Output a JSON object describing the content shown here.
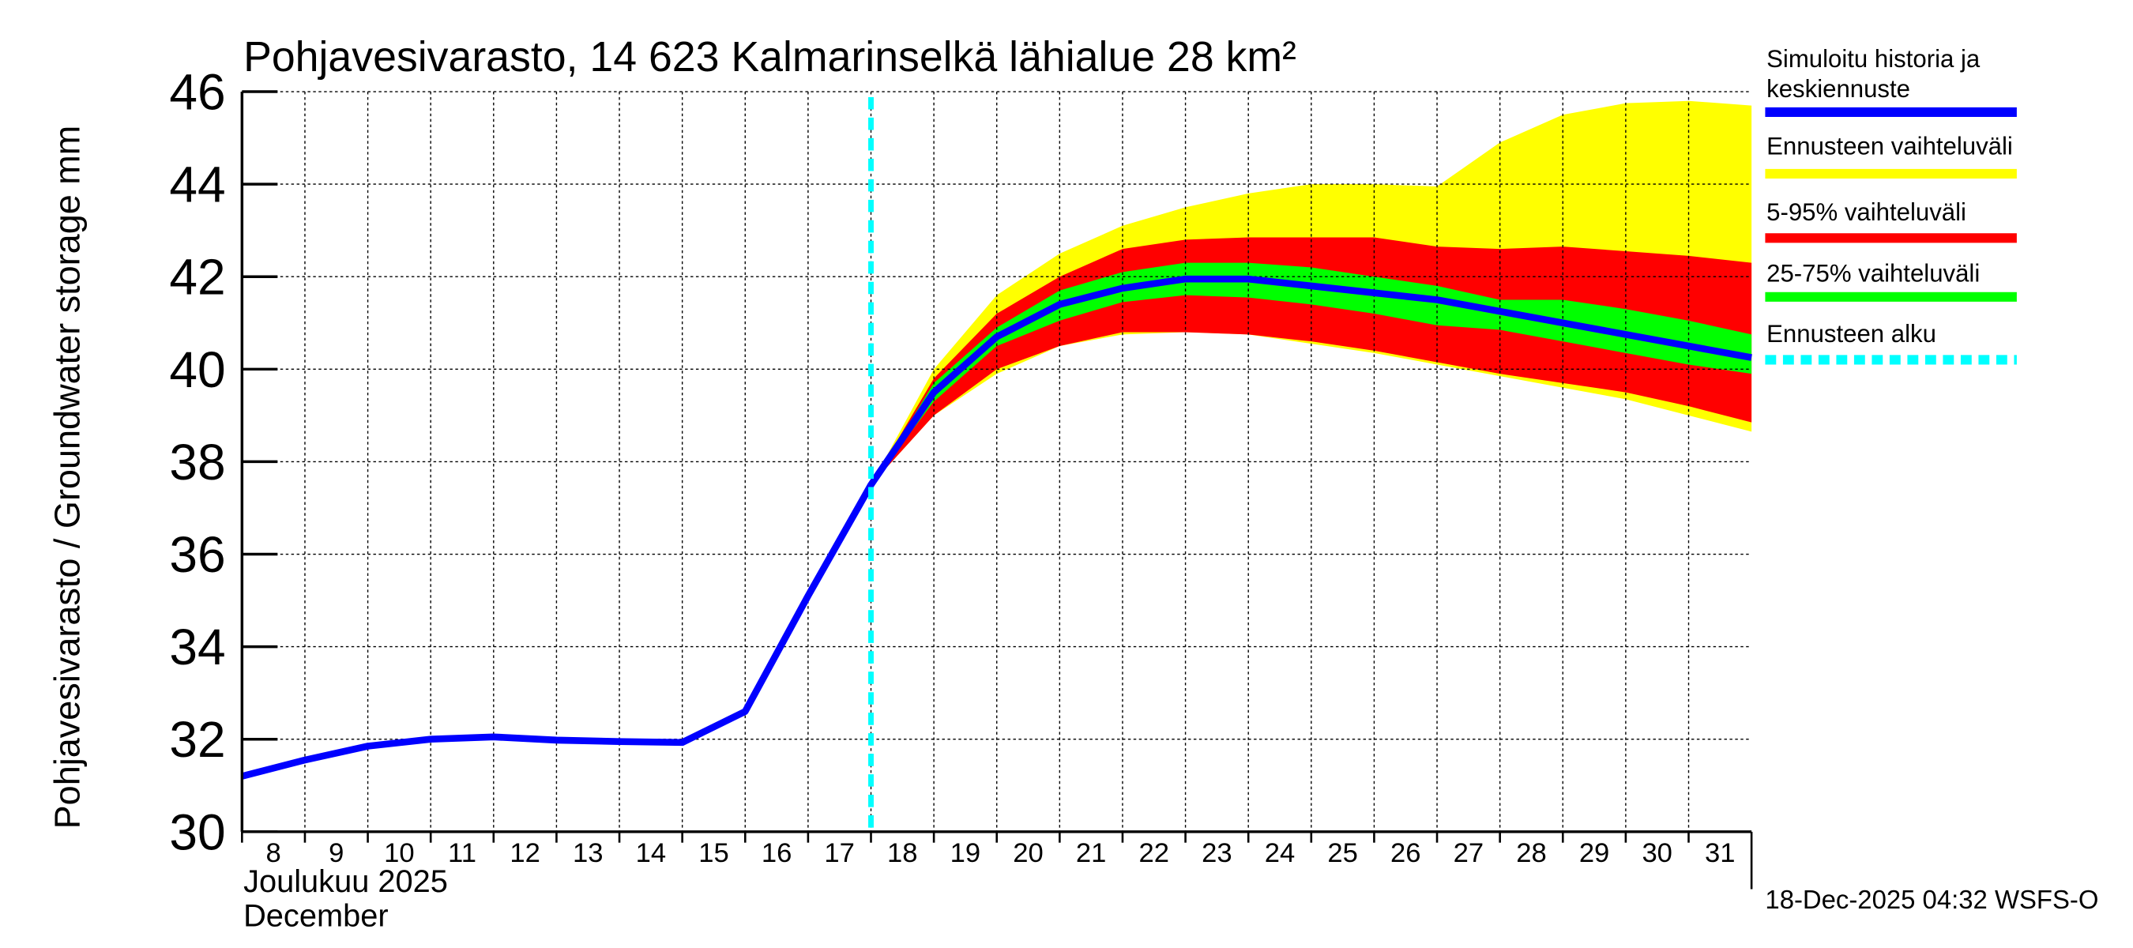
{
  "chart_data": {
    "type": "area",
    "title": "Pohjavesivarasto, 14 623 Kalmarinselkä lähialue 28 km²",
    "ylabel": "Pohjavesivarasto / Groundwater storage   mm",
    "xlabel_line1": "Joulukuu  2025",
    "xlabel_line2": "December",
    "footer": "18-Dec-2025 04:32 WSFS-O",
    "ylim": [
      30,
      46
    ],
    "yticks": [
      "30",
      "32",
      "34",
      "36",
      "38",
      "40",
      "42",
      "44",
      "46"
    ],
    "xlim": [
      8,
      32
    ],
    "xticks": [
      "8",
      "9",
      "10",
      "11",
      "12",
      "13",
      "14",
      "15",
      "16",
      "17",
      "18",
      "19",
      "20",
      "21",
      "22",
      "23",
      "24",
      "25",
      "26",
      "27",
      "28",
      "29",
      "30",
      "31"
    ],
    "forecast_start_day": 18,
    "grid": true,
    "legend_placement": "right",
    "legend": [
      {
        "label": "Simuloitu historia ja keskiennuste",
        "line1": "Simuloitu historia ja",
        "line2": "keskiennuste",
        "color": "#0000ff",
        "style": "solid"
      },
      {
        "label": "Ennusteen vaihteluväli",
        "color": "#ffff00",
        "style": "solid"
      },
      {
        "label": "5-95% vaihteluväli",
        "color": "#ff0000",
        "style": "solid"
      },
      {
        "label": "25-75% vaihteluväli",
        "color": "#00ff00",
        "style": "solid"
      },
      {
        "label": "Ennusteen alku",
        "color": "#00ffff",
        "style": "dashed"
      }
    ],
    "median": {
      "x": [
        8,
        9,
        10,
        11,
        12,
        13,
        14,
        15,
        16,
        17,
        18,
        19,
        20,
        21,
        22,
        23,
        24,
        25,
        26,
        27,
        28,
        29,
        30,
        31,
        32
      ],
      "y": [
        31.2,
        31.55,
        31.85,
        32.0,
        32.05,
        31.98,
        31.95,
        31.93,
        32.6,
        35.1,
        37.5,
        39.5,
        40.7,
        41.4,
        41.75,
        41.95,
        41.95,
        41.8,
        41.65,
        41.5,
        41.25,
        41.0,
        40.75,
        40.5,
        40.25
      ]
    },
    "bands": [
      {
        "name": "Ennusteen vaihteluväli",
        "color": "#ffff00",
        "x": [
          18,
          19,
          20,
          21,
          22,
          23,
          24,
          25,
          26,
          27,
          28,
          29,
          30,
          31,
          32
        ],
        "upper": [
          37.5,
          40.0,
          41.6,
          42.5,
          43.1,
          43.5,
          43.8,
          44.0,
          44.0,
          43.95,
          44.9,
          45.5,
          45.75,
          45.8,
          45.7
        ],
        "lower": [
          37.5,
          39.0,
          39.9,
          40.5,
          40.75,
          40.8,
          40.75,
          40.55,
          40.35,
          40.1,
          39.85,
          39.6,
          39.35,
          39.0,
          38.65
        ]
      },
      {
        "name": "5-95% vaihteluväli",
        "color": "#ff0000",
        "x": [
          18,
          19,
          20,
          21,
          22,
          23,
          24,
          25,
          26,
          27,
          28,
          29,
          30,
          31,
          32
        ],
        "upper": [
          37.5,
          39.8,
          41.2,
          42.0,
          42.6,
          42.8,
          42.85,
          42.85,
          42.85,
          42.65,
          42.6,
          42.65,
          42.55,
          42.45,
          42.3
        ],
        "lower": [
          37.5,
          39.0,
          40.0,
          40.5,
          40.8,
          40.8,
          40.75,
          40.6,
          40.4,
          40.15,
          39.9,
          39.7,
          39.5,
          39.2,
          38.85
        ]
      },
      {
        "name": "25-75% vaihteluväli",
        "color": "#00ff00",
        "x": [
          18,
          19,
          20,
          21,
          22,
          23,
          24,
          25,
          26,
          27,
          28,
          29,
          30,
          31,
          32
        ],
        "upper": [
          37.5,
          39.7,
          40.9,
          41.7,
          42.1,
          42.3,
          42.3,
          42.2,
          42.0,
          41.8,
          41.5,
          41.5,
          41.3,
          41.05,
          40.75
        ],
        "lower": [
          37.5,
          39.3,
          40.5,
          41.05,
          41.45,
          41.6,
          41.55,
          41.4,
          41.2,
          40.95,
          40.85,
          40.6,
          40.35,
          40.1,
          39.9
        ]
      }
    ]
  }
}
